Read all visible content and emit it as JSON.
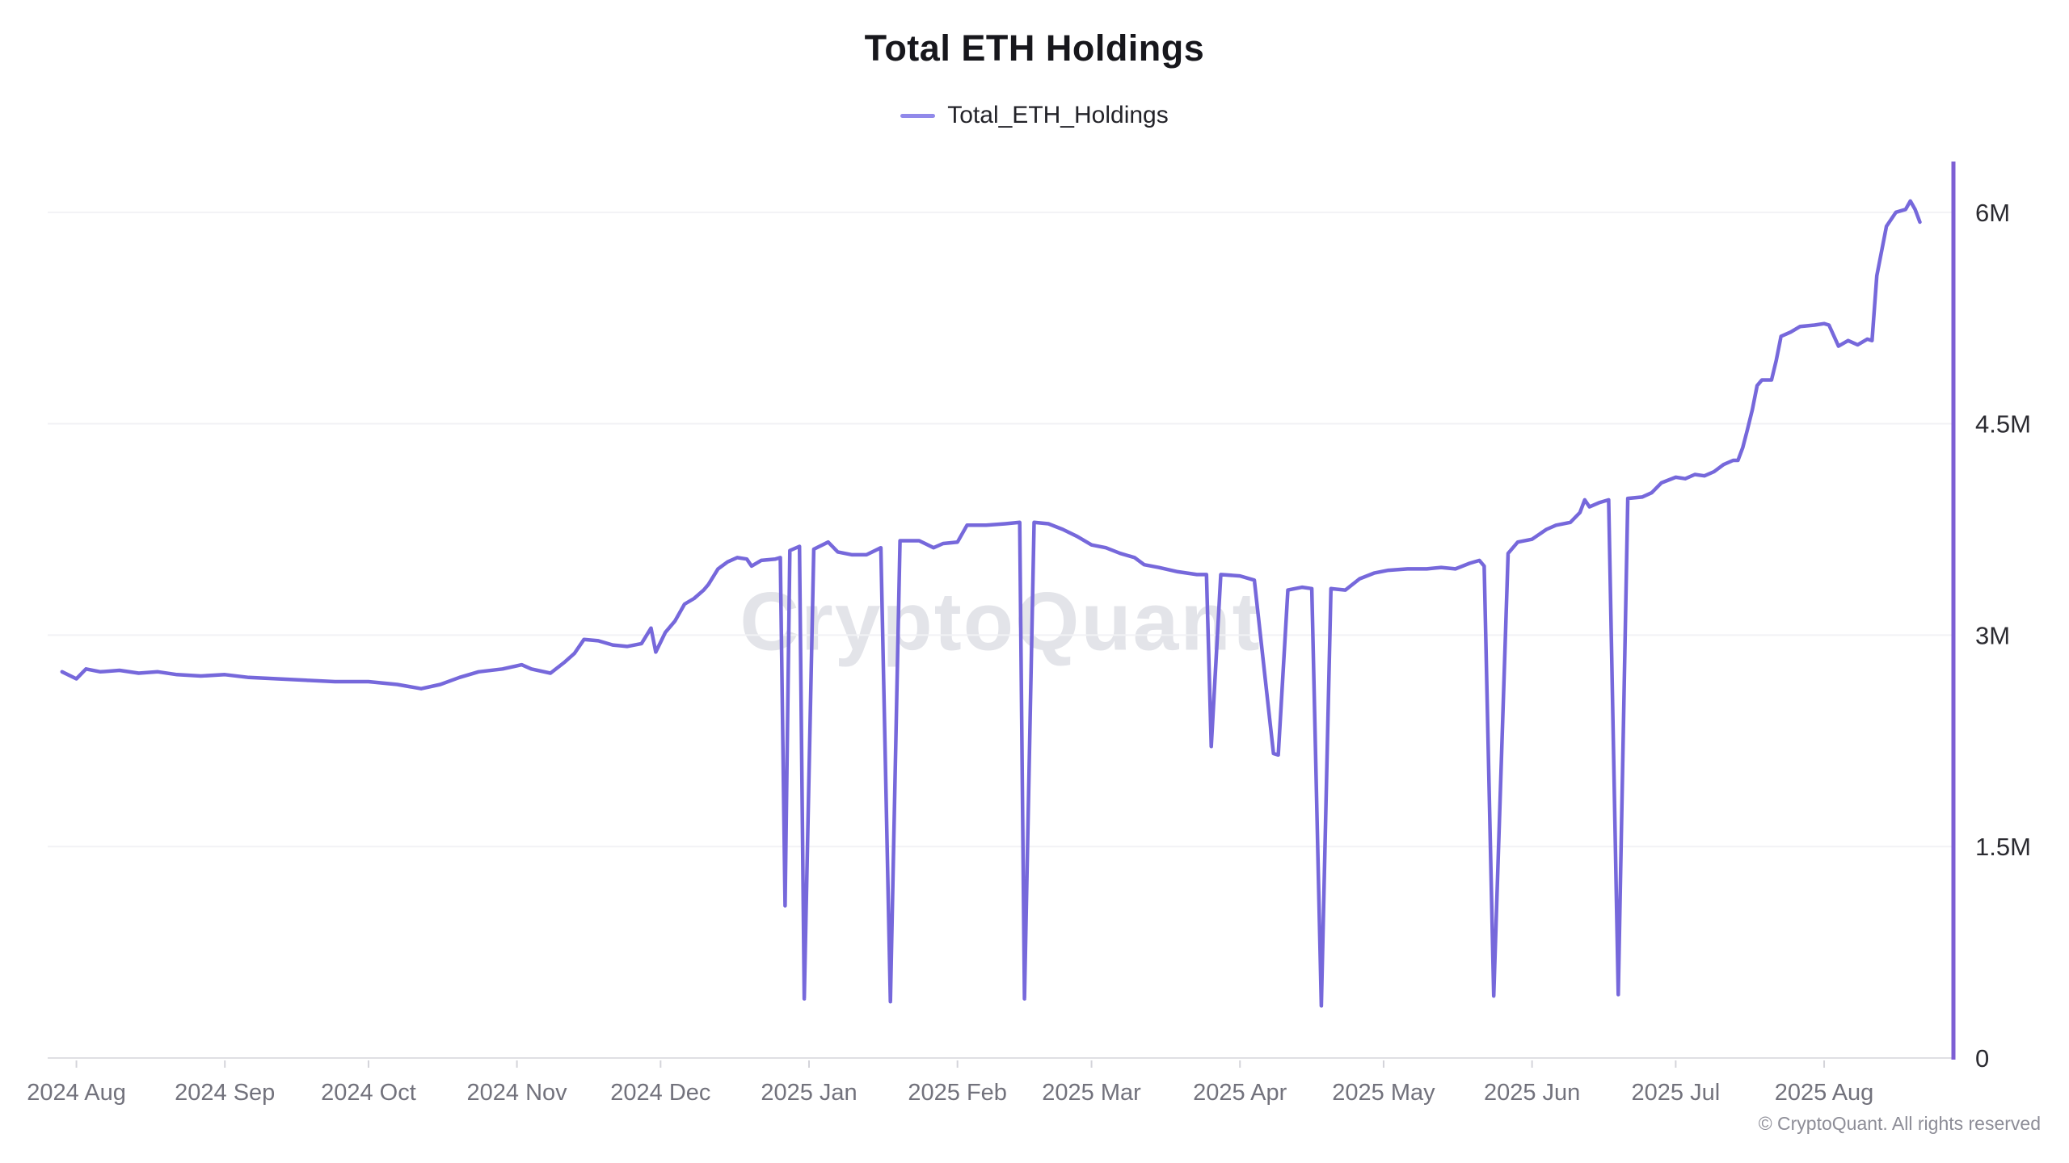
{
  "title": "Total ETH Holdings",
  "legend": {
    "label": "Total_ETH_Holdings",
    "marker_color": "#9189ea"
  },
  "watermark": "CryptoQuant",
  "footer": {
    "copyright": "© CryptoQuant. All rights reserved"
  },
  "colors": {
    "line": "#7668db",
    "right_axis": "#7d5fd4",
    "grid": "#f2f2f5",
    "bottom_axis": "#dfdfe3",
    "tick_mark": "#d4d4da",
    "x_label": "#72727c",
    "y_label": "#2b2b31",
    "title_text": "#17171c",
    "watermark_text": "#cdcfd8",
    "copyright_text": "#8d8d97"
  },
  "chart_data": {
    "type": "line",
    "title": "Total ETH Holdings",
    "series_name": "Total_ETH_Holdings",
    "unit": "ETH, millions",
    "grid": "horizontal",
    "legend_position": "top-center",
    "y_axis_side": "right",
    "ylim": [
      0,
      6.36
    ],
    "x_domain": [
      "2024-07-26",
      "2025-08-28"
    ],
    "x_ticks": [
      "2024 Aug",
      "2024 Sep",
      "2024 Oct",
      "2024 Nov",
      "2024 Dec",
      "2025 Jan",
      "2025 Feb",
      "2025 Mar",
      "2025 Apr",
      "2025 May",
      "2025 Jun",
      "2025 Jul",
      "2025 Aug"
    ],
    "x_tick_dates": [
      "2024-08-01",
      "2024-09-01",
      "2024-10-01",
      "2024-11-01",
      "2024-12-01",
      "2025-01-01",
      "2025-02-01",
      "2025-03-01",
      "2025-04-01",
      "2025-05-01",
      "2025-06-01",
      "2025-07-01",
      "2025-08-01"
    ],
    "y_ticks": [
      {
        "label": "0",
        "value": 0
      },
      {
        "label": "1.5M",
        "value": 1.5
      },
      {
        "label": "3M",
        "value": 3
      },
      {
        "label": "4.5M",
        "value": 4.5
      },
      {
        "label": "6M",
        "value": 6
      }
    ],
    "points": [
      [
        "2024-07-29",
        2.74
      ],
      [
        "2024-08-01",
        2.69
      ],
      [
        "2024-08-03",
        2.76
      ],
      [
        "2024-08-06",
        2.74
      ],
      [
        "2024-08-10",
        2.75
      ],
      [
        "2024-08-14",
        2.73
      ],
      [
        "2024-08-18",
        2.74
      ],
      [
        "2024-08-22",
        2.72
      ],
      [
        "2024-08-27",
        2.71
      ],
      [
        "2024-09-01",
        2.72
      ],
      [
        "2024-09-06",
        2.7
      ],
      [
        "2024-09-12",
        2.69
      ],
      [
        "2024-09-18",
        2.68
      ],
      [
        "2024-09-24",
        2.67
      ],
      [
        "2024-10-01",
        2.67
      ],
      [
        "2024-10-07",
        2.65
      ],
      [
        "2024-10-12",
        2.62
      ],
      [
        "2024-10-16",
        2.65
      ],
      [
        "2024-10-20",
        2.7
      ],
      [
        "2024-10-24",
        2.74
      ],
      [
        "2024-10-29",
        2.76
      ],
      [
        "2024-11-02",
        2.79
      ],
      [
        "2024-11-04",
        2.76
      ],
      [
        "2024-11-08",
        2.73
      ],
      [
        "2024-11-11",
        2.81
      ],
      [
        "2024-11-13",
        2.87
      ],
      [
        "2024-11-15",
        2.97
      ],
      [
        "2024-11-18",
        2.96
      ],
      [
        "2024-11-21",
        2.93
      ],
      [
        "2024-11-24",
        2.92
      ],
      [
        "2024-11-27",
        2.94
      ],
      [
        "2024-11-29",
        3.05
      ],
      [
        "2024-11-30",
        2.88
      ],
      [
        "2024-12-02",
        3.02
      ],
      [
        "2024-12-04",
        3.1
      ],
      [
        "2024-12-06",
        3.22
      ],
      [
        "2024-12-08",
        3.26
      ],
      [
        "2024-12-10",
        3.32
      ],
      [
        "2024-12-11",
        3.36
      ],
      [
        "2024-12-13",
        3.47
      ],
      [
        "2024-12-15",
        3.52
      ],
      [
        "2024-12-17",
        3.55
      ],
      [
        "2024-12-19",
        3.54
      ],
      [
        "2024-12-20",
        3.49
      ],
      [
        "2024-12-22",
        3.53
      ],
      [
        "2024-12-25",
        3.54
      ],
      [
        "2024-12-26",
        3.55
      ],
      [
        "2024-12-27",
        1.08
      ],
      [
        "2024-12-28",
        3.6
      ],
      [
        "2024-12-30",
        3.63
      ],
      [
        "2024-12-31",
        0.42
      ],
      [
        "2025-01-02",
        3.61
      ],
      [
        "2025-01-05",
        3.66
      ],
      [
        "2025-01-07",
        3.59
      ],
      [
        "2025-01-10",
        3.57
      ],
      [
        "2025-01-13",
        3.57
      ],
      [
        "2025-01-16",
        3.62
      ],
      [
        "2025-01-18",
        0.4
      ],
      [
        "2025-01-20",
        3.67
      ],
      [
        "2025-01-24",
        3.67
      ],
      [
        "2025-01-27",
        3.62
      ],
      [
        "2025-01-29",
        3.65
      ],
      [
        "2025-02-01",
        3.66
      ],
      [
        "2025-02-03",
        3.78
      ],
      [
        "2025-02-07",
        3.78
      ],
      [
        "2025-02-11",
        3.79
      ],
      [
        "2025-02-14",
        3.8
      ],
      [
        "2025-02-15",
        0.42
      ],
      [
        "2025-02-17",
        3.8
      ],
      [
        "2025-02-20",
        3.79
      ],
      [
        "2025-02-23",
        3.75
      ],
      [
        "2025-02-26",
        3.7
      ],
      [
        "2025-03-01",
        3.64
      ],
      [
        "2025-03-04",
        3.62
      ],
      [
        "2025-03-07",
        3.58
      ],
      [
        "2025-03-10",
        3.55
      ],
      [
        "2025-03-12",
        3.5
      ],
      [
        "2025-03-15",
        3.48
      ],
      [
        "2025-03-19",
        3.45
      ],
      [
        "2025-03-23",
        3.43
      ],
      [
        "2025-03-25",
        3.43
      ],
      [
        "2025-03-26",
        2.21
      ],
      [
        "2025-03-28",
        3.43
      ],
      [
        "2025-04-01",
        3.42
      ],
      [
        "2025-04-04",
        3.39
      ],
      [
        "2025-04-08",
        2.16
      ],
      [
        "2025-04-09",
        2.15
      ],
      [
        "2025-04-11",
        3.32
      ],
      [
        "2025-04-14",
        3.34
      ],
      [
        "2025-04-16",
        3.33
      ],
      [
        "2025-04-18",
        0.37
      ],
      [
        "2025-04-20",
        3.33
      ],
      [
        "2025-04-23",
        3.32
      ],
      [
        "2025-04-26",
        3.4
      ],
      [
        "2025-04-29",
        3.44
      ],
      [
        "2025-05-02",
        3.46
      ],
      [
        "2025-05-06",
        3.47
      ],
      [
        "2025-05-10",
        3.47
      ],
      [
        "2025-05-13",
        3.48
      ],
      [
        "2025-05-16",
        3.47
      ],
      [
        "2025-05-19",
        3.51
      ],
      [
        "2025-05-21",
        3.53
      ],
      [
        "2025-05-22",
        3.49
      ],
      [
        "2025-05-24",
        0.44
      ],
      [
        "2025-05-27",
        3.58
      ],
      [
        "2025-05-29",
        3.66
      ],
      [
        "2025-06-01",
        3.68
      ],
      [
        "2025-06-04",
        3.75
      ],
      [
        "2025-06-06",
        3.78
      ],
      [
        "2025-06-09",
        3.8
      ],
      [
        "2025-06-11",
        3.87
      ],
      [
        "2025-06-12",
        3.96
      ],
      [
        "2025-06-13",
        3.91
      ],
      [
        "2025-06-15",
        3.94
      ],
      [
        "2025-06-17",
        3.96
      ],
      [
        "2025-06-19",
        0.45
      ],
      [
        "2025-06-21",
        3.97
      ],
      [
        "2025-06-24",
        3.98
      ],
      [
        "2025-06-26",
        4.01
      ],
      [
        "2025-06-28",
        4.08
      ],
      [
        "2025-07-01",
        4.12
      ],
      [
        "2025-07-03",
        4.11
      ],
      [
        "2025-07-05",
        4.14
      ],
      [
        "2025-07-07",
        4.13
      ],
      [
        "2025-07-09",
        4.16
      ],
      [
        "2025-07-11",
        4.21
      ],
      [
        "2025-07-13",
        4.24
      ],
      [
        "2025-07-14",
        4.24
      ],
      [
        "2025-07-15",
        4.33
      ],
      [
        "2025-07-16",
        4.46
      ],
      [
        "2025-07-17",
        4.6
      ],
      [
        "2025-07-18",
        4.77
      ],
      [
        "2025-07-19",
        4.81
      ],
      [
        "2025-07-21",
        4.81
      ],
      [
        "2025-07-22",
        4.95
      ],
      [
        "2025-07-23",
        5.12
      ],
      [
        "2025-07-25",
        5.15
      ],
      [
        "2025-07-27",
        5.19
      ],
      [
        "2025-07-30",
        5.2
      ],
      [
        "2025-08-01",
        5.21
      ],
      [
        "2025-08-02",
        5.2
      ],
      [
        "2025-08-04",
        5.05
      ],
      [
        "2025-08-06",
        5.09
      ],
      [
        "2025-08-08",
        5.06
      ],
      [
        "2025-08-10",
        5.1
      ],
      [
        "2025-08-11",
        5.09
      ],
      [
        "2025-08-12",
        5.55
      ],
      [
        "2025-08-14",
        5.9
      ],
      [
        "2025-08-16",
        6.0
      ],
      [
        "2025-08-18",
        6.02
      ],
      [
        "2025-08-19",
        6.08
      ],
      [
        "2025-08-20",
        6.02
      ],
      [
        "2025-08-21",
        5.93
      ]
    ]
  }
}
